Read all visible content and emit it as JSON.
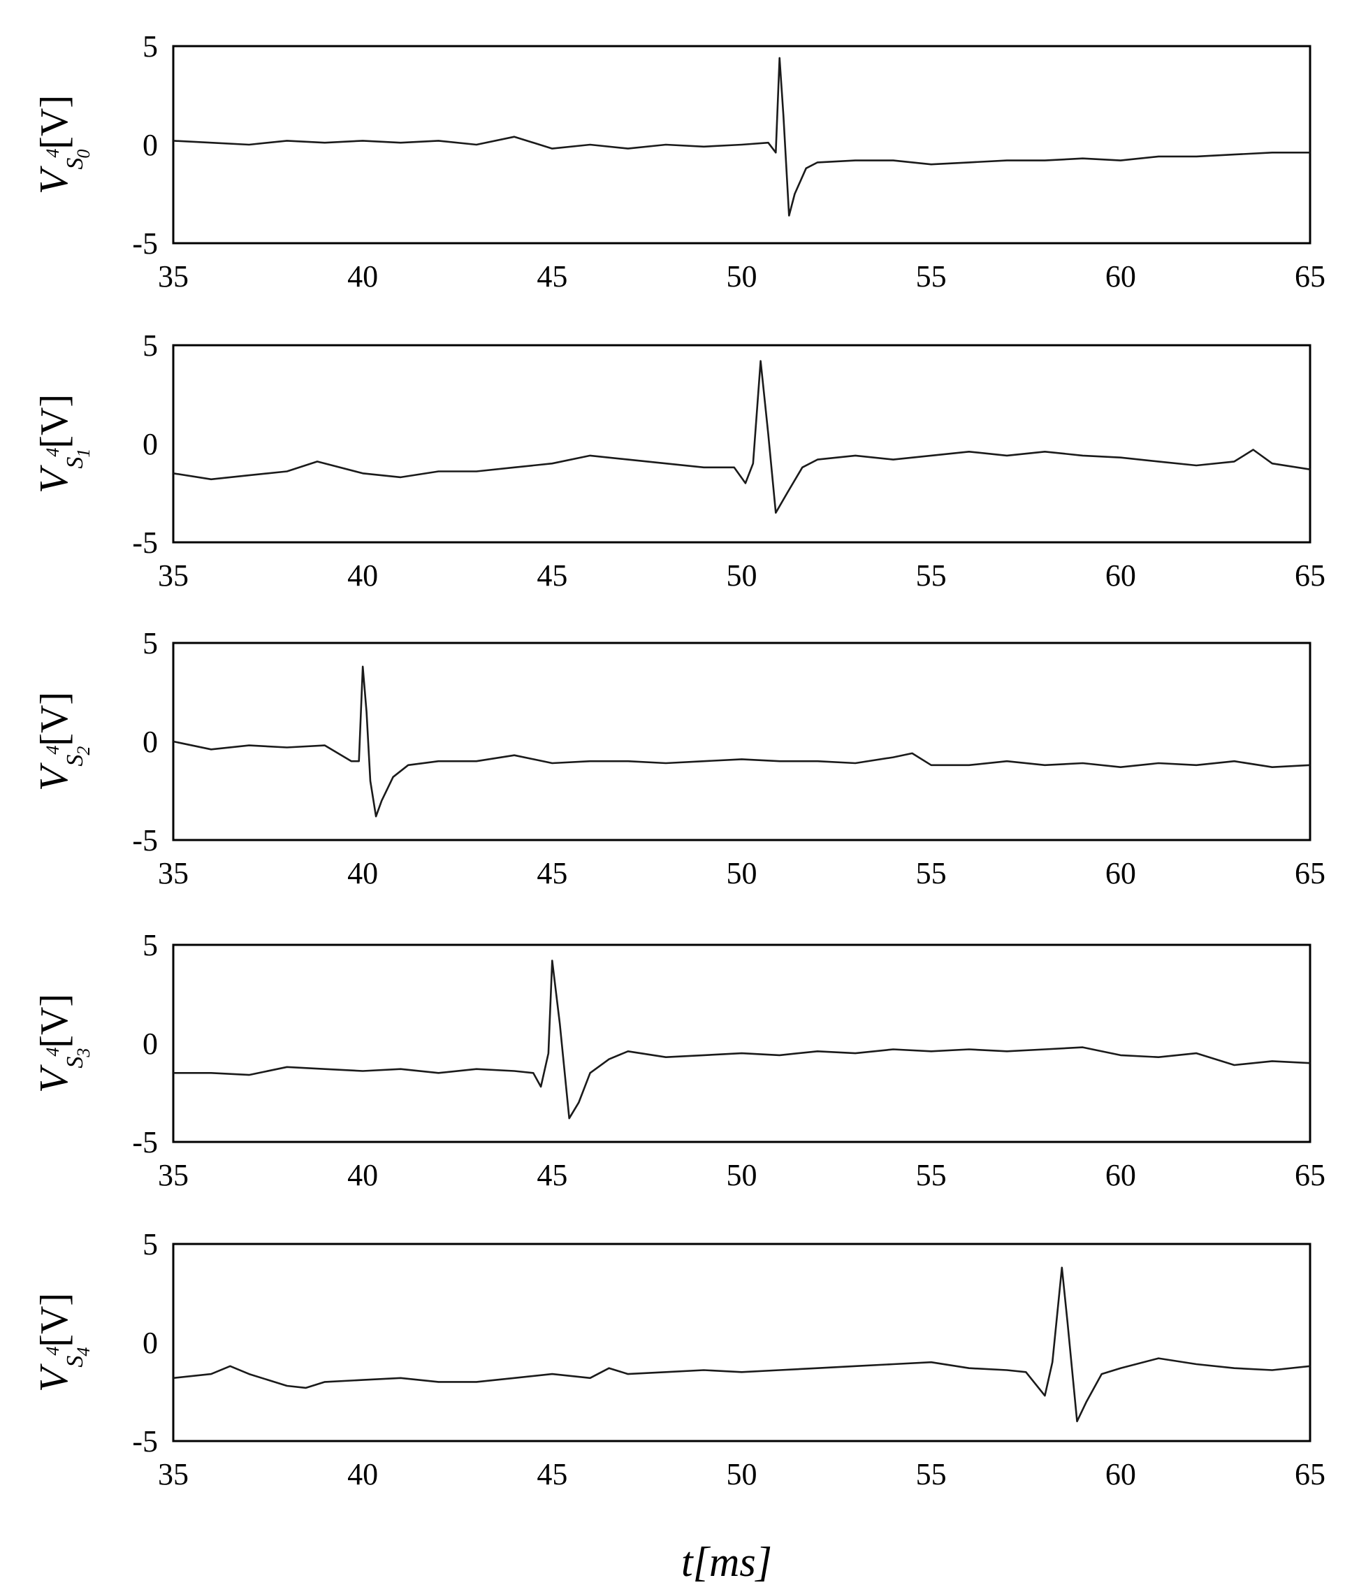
{
  "chart_data": [
    {
      "type": "line",
      "ylabel": {
        "main": "V",
        "sup": "4",
        "sub_base": "S",
        "sub_index": "0",
        "unit": "[V]"
      },
      "xlim": [
        35,
        65
      ],
      "ylim": [
        -5,
        5
      ],
      "xticks": [
        "35",
        "40",
        "45",
        "50",
        "55",
        "60",
        "65"
      ],
      "yticks": [
        "5",
        "0",
        "-5"
      ],
      "series": [
        {
          "x": [
            35,
            36,
            37,
            38,
            39,
            40,
            41,
            42,
            43,
            44,
            45,
            46,
            47,
            48,
            49,
            50,
            50.7,
            50.9,
            51.0,
            51.1,
            51.25,
            51.4,
            51.7,
            52,
            53,
            54,
            55,
            56,
            57,
            58,
            59,
            60,
            61,
            62,
            63,
            64,
            65
          ],
          "y": [
            0.2,
            0.1,
            0.0,
            0.2,
            0.1,
            0.2,
            0.1,
            0.2,
            0.0,
            0.4,
            -0.2,
            0.0,
            -0.2,
            0.0,
            -0.1,
            0.0,
            0.1,
            -0.4,
            4.4,
            1.5,
            -3.6,
            -2.5,
            -1.2,
            -0.9,
            -0.8,
            -0.8,
            -1.0,
            -0.9,
            -0.8,
            -0.8,
            -0.7,
            -0.8,
            -0.6,
            -0.6,
            -0.5,
            -0.4,
            -0.4
          ]
        }
      ]
    },
    {
      "type": "line",
      "ylabel": {
        "main": "V",
        "sup": "4",
        "sub_base": "S",
        "sub_index": "1",
        "unit": "[V]"
      },
      "xlim": [
        35,
        65
      ],
      "ylim": [
        -5,
        5
      ],
      "xticks": [
        "35",
        "40",
        "45",
        "50",
        "55",
        "60",
        "65"
      ],
      "yticks": [
        "5",
        "0",
        "-5"
      ],
      "series": [
        {
          "x": [
            35,
            36,
            37,
            38,
            38.8,
            40,
            41,
            42,
            43,
            44,
            45,
            46,
            47,
            48,
            49,
            49.8,
            50.1,
            50.3,
            50.5,
            50.7,
            50.9,
            51.2,
            51.6,
            52,
            53,
            54,
            55,
            56,
            57,
            58,
            59,
            60,
            61,
            62,
            63,
            63.5,
            64,
            65
          ],
          "y": [
            -1.5,
            -1.8,
            -1.6,
            -1.4,
            -0.9,
            -1.5,
            -1.7,
            -1.4,
            -1.4,
            -1.2,
            -1.0,
            -0.6,
            -0.8,
            -1.0,
            -1.2,
            -1.2,
            -2.0,
            -1.0,
            4.2,
            0.5,
            -3.5,
            -2.5,
            -1.2,
            -0.8,
            -0.6,
            -0.8,
            -0.6,
            -0.4,
            -0.6,
            -0.4,
            -0.6,
            -0.7,
            -0.9,
            -1.1,
            -0.9,
            -0.3,
            -1.0,
            -1.3
          ]
        }
      ]
    },
    {
      "type": "line",
      "ylabel": {
        "main": "V",
        "sup": "4",
        "sub_base": "S",
        "sub_index": "2",
        "unit": "[V]"
      },
      "xlim": [
        35,
        65
      ],
      "ylim": [
        -5,
        5
      ],
      "xticks": [
        "35",
        "40",
        "45",
        "50",
        "55",
        "60",
        "65"
      ],
      "yticks": [
        "5",
        "0",
        "-5"
      ],
      "series": [
        {
          "x": [
            35,
            36,
            37,
            38,
            39,
            39.7,
            39.9,
            40.0,
            40.1,
            40.2,
            40.35,
            40.5,
            40.8,
            41.2,
            42,
            43,
            44,
            45,
            46,
            47,
            48,
            49,
            50,
            51,
            52,
            53,
            54,
            54.5,
            55,
            56,
            57,
            58,
            59,
            60,
            61,
            62,
            63,
            64,
            65
          ],
          "y": [
            0.0,
            -0.4,
            -0.2,
            -0.3,
            -0.2,
            -1.0,
            -1.0,
            3.8,
            1.5,
            -2.0,
            -3.8,
            -3.0,
            -1.8,
            -1.2,
            -1.0,
            -1.0,
            -0.7,
            -1.1,
            -1.0,
            -1.0,
            -1.1,
            -1.0,
            -0.9,
            -1.0,
            -1.0,
            -1.1,
            -0.8,
            -0.6,
            -1.2,
            -1.2,
            -1.0,
            -1.2,
            -1.1,
            -1.3,
            -1.1,
            -1.2,
            -1.0,
            -1.3,
            -1.2
          ]
        }
      ]
    },
    {
      "type": "line",
      "ylabel": {
        "main": "V",
        "sup": "4",
        "sub_base": "S",
        "sub_index": "3",
        "unit": "[V]"
      },
      "xlim": [
        35,
        65
      ],
      "ylim": [
        -5,
        5
      ],
      "xticks": [
        "35",
        "40",
        "45",
        "50",
        "55",
        "60",
        "65"
      ],
      "yticks": [
        "5",
        "0",
        "-5"
      ],
      "series": [
        {
          "x": [
            35,
            36,
            37,
            38,
            39,
            40,
            41,
            42,
            43,
            44,
            44.5,
            44.7,
            44.9,
            45.0,
            45.2,
            45.45,
            45.7,
            46,
            46.5,
            47,
            48,
            49,
            50,
            51,
            52,
            53,
            54,
            55,
            56,
            57,
            58,
            59,
            60,
            61,
            62,
            63,
            64,
            65
          ],
          "y": [
            -1.5,
            -1.5,
            -1.6,
            -1.2,
            -1.3,
            -1.4,
            -1.3,
            -1.5,
            -1.3,
            -1.4,
            -1.5,
            -2.2,
            -0.5,
            4.2,
            1.0,
            -3.8,
            -3.0,
            -1.5,
            -0.8,
            -0.4,
            -0.7,
            -0.6,
            -0.5,
            -0.6,
            -0.4,
            -0.5,
            -0.3,
            -0.4,
            -0.3,
            -0.4,
            -0.3,
            -0.2,
            -0.6,
            -0.7,
            -0.5,
            -1.1,
            -0.9,
            -1.0
          ]
        }
      ]
    },
    {
      "type": "line",
      "ylabel": {
        "main": "V",
        "sup": "4",
        "sub_base": "S",
        "sub_index": "4",
        "unit": "[V]"
      },
      "xlim": [
        35,
        65
      ],
      "ylim": [
        -5,
        5
      ],
      "xticks": [
        "35",
        "40",
        "45",
        "50",
        "55",
        "60",
        "65"
      ],
      "yticks": [
        "5",
        "0",
        "-5"
      ],
      "series": [
        {
          "x": [
            35,
            36,
            36.5,
            37,
            38,
            38.5,
            39,
            40,
            41,
            42,
            43,
            44,
            45,
            46,
            46.5,
            47,
            48,
            49,
            50,
            51,
            52,
            53,
            54,
            55,
            56,
            57,
            57.5,
            58.0,
            58.2,
            58.45,
            58.6,
            58.85,
            59.1,
            59.5,
            60,
            61,
            62,
            63,
            64,
            65
          ],
          "y": [
            -1.8,
            -1.6,
            -1.2,
            -1.6,
            -2.2,
            -2.3,
            -2.0,
            -1.9,
            -1.8,
            -2.0,
            -2.0,
            -1.8,
            -1.6,
            -1.8,
            -1.3,
            -1.6,
            -1.5,
            -1.4,
            -1.5,
            -1.4,
            -1.3,
            -1.2,
            -1.1,
            -1.0,
            -1.3,
            -1.4,
            -1.5,
            -2.7,
            -1.0,
            3.8,
            1.0,
            -4.0,
            -3.0,
            -1.6,
            -1.3,
            -0.8,
            -1.1,
            -1.3,
            -1.4,
            -1.2
          ]
        }
      ]
    }
  ],
  "xlabel": {
    "italic": "t",
    "unit": "[ms]"
  }
}
